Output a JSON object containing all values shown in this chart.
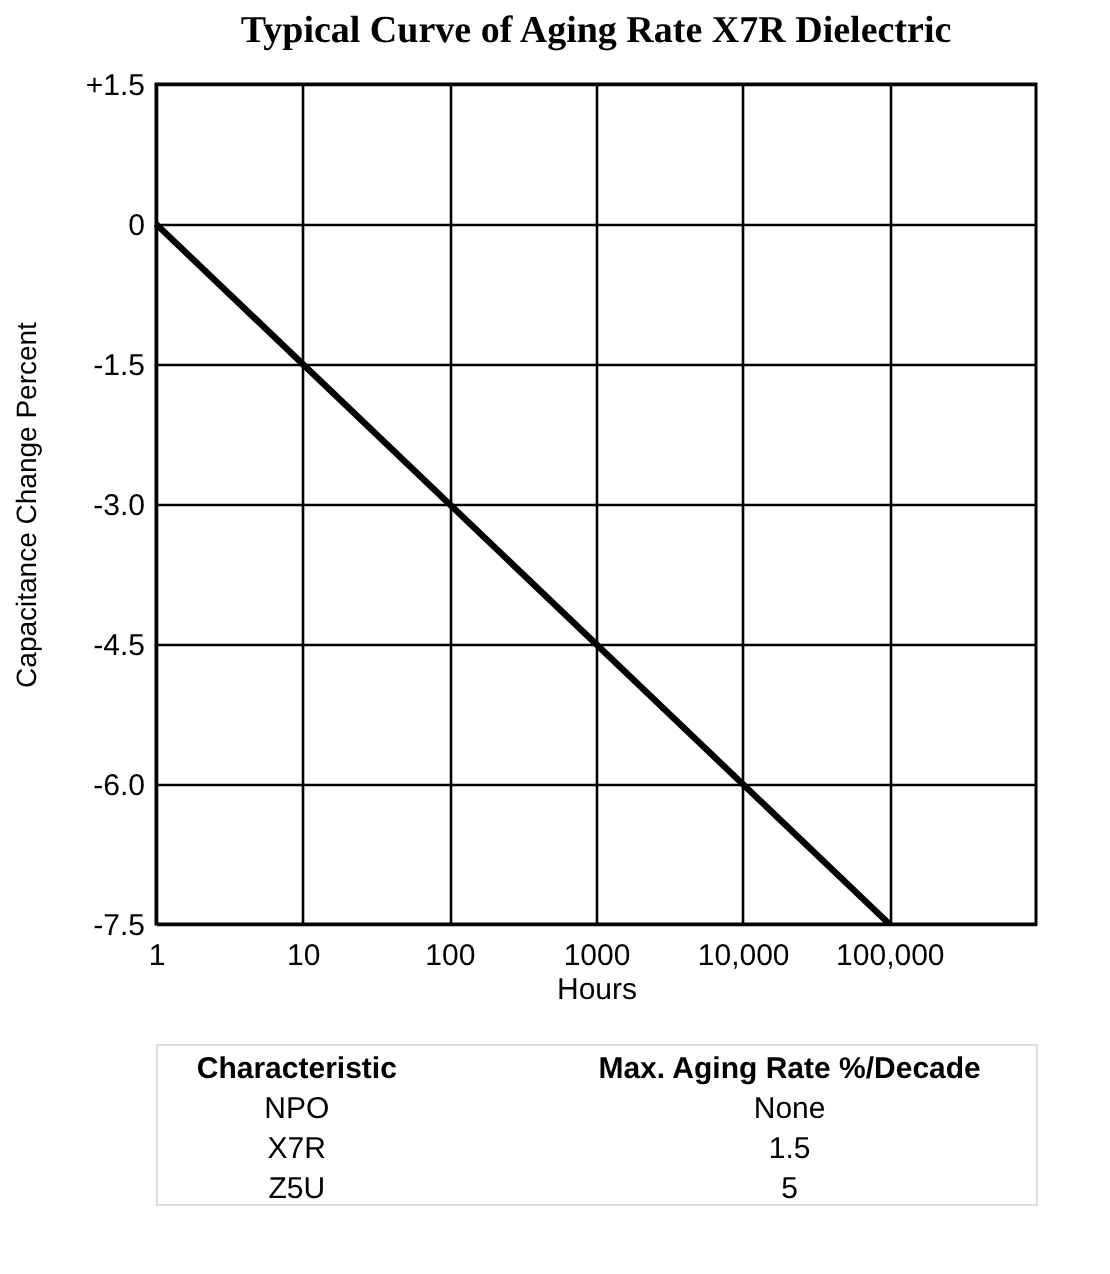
{
  "chart_data": {
    "type": "line",
    "title": "Typical Curve of Aging Rate  X7R Dielectric",
    "xlabel": "Hours",
    "ylabel": "Capacitance Change Percent",
    "x": [
      1,
      100000
    ],
    "series": [
      {
        "color": "#000000",
        "values": [
          0,
          -7.5
        ]
      }
    ],
    "log": "x",
    "grid": true,
    "line_style": "solid",
    "marker": "none",
    "xlim": [
      1,
      1000000
    ],
    "xticks": [
      1,
      10,
      100,
      1000,
      {
        "value": 10000,
        "label": "10,000"
      },
      {
        "value": 100000,
        "label": "100,000"
      }
    ],
    "ylim": [
      -7.5,
      1.5
    ],
    "yticks": [
      {
        "value": 1.5,
        "label": "+1.5"
      },
      0,
      -1.5,
      {
        "value": -3,
        "label": "-3.0"
      },
      -4.5,
      {
        "value": -6,
        "label": "-6.0"
      },
      -7.5
    ],
    "annotations": [
      "Characteristic",
      "Max. Aging Rate %/Decade",
      "NPO",
      "None",
      "X7R",
      "1.5",
      "Z5U",
      "5"
    ]
  }
}
